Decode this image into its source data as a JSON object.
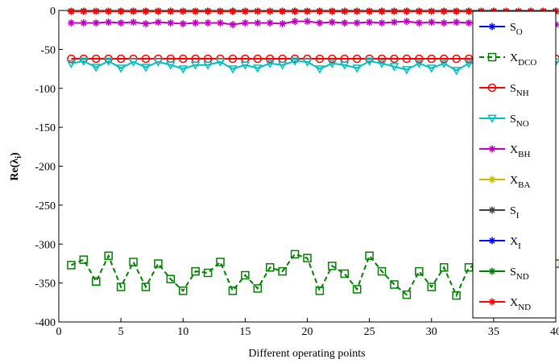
{
  "chart_data": {
    "type": "line",
    "x_label": "Different operating points",
    "y_label": {
      "main": "Re(λ",
      "sub": "i",
      "close": ")"
    },
    "xlim": [
      0,
      40
    ],
    "xticks": [
      0,
      5,
      10,
      15,
      20,
      25,
      30,
      35,
      40
    ],
    "ylim": [
      -400,
      0
    ],
    "yticks": [
      -400,
      -350,
      -300,
      -250,
      -200,
      -150,
      -100,
      -50,
      0
    ],
    "x": [
      1,
      2,
      3,
      4,
      5,
      6,
      7,
      8,
      9,
      10,
      11,
      12,
      13,
      14,
      15,
      16,
      17,
      18,
      19,
      20,
      21,
      22,
      23,
      24,
      25,
      26,
      27,
      28,
      29,
      30,
      31,
      32,
      33,
      34,
      35,
      36,
      37,
      38,
      39,
      40
    ],
    "legend": "upper right",
    "series": [
      {
        "name": "S",
        "sub": "O",
        "color": "#0000ff",
        "marker": "star",
        "dash": "solid",
        "values": [
          -1,
          -1,
          -1,
          -1,
          -1,
          -1,
          -1,
          -1,
          -1,
          -1,
          -1,
          -1,
          -1,
          -1,
          -1,
          -1,
          -1,
          -1,
          -1,
          -1,
          -1,
          -1,
          -1,
          -1,
          -1,
          -1,
          -1,
          -1,
          -1,
          -1,
          -1,
          -1,
          -1,
          -1,
          -1,
          -1,
          -1,
          -1,
          -1,
          -1
        ]
      },
      {
        "name": "X",
        "sub": "DCO",
        "color": "#008000",
        "marker": "square",
        "dash": "dashed",
        "values": [
          -327,
          -320,
          -348,
          -315,
          -355,
          -323,
          -355,
          -325,
          -345,
          -360,
          -335,
          -337,
          -323,
          -360,
          -340,
          -357,
          -330,
          -335,
          -313,
          -318,
          -360,
          -328,
          -338,
          -358,
          -315,
          -335,
          -352,
          -365,
          -335,
          -355,
          -330,
          -366,
          -330,
          -325,
          -328,
          -330,
          -325,
          -328,
          -325,
          -325
        ]
      },
      {
        "name": "S",
        "sub": "NH",
        "color": "#ff0000",
        "marker": "circle",
        "dash": "solid",
        "values": [
          -62,
          -62,
          -62,
          -62,
          -62,
          -62,
          -62,
          -62,
          -62,
          -62,
          -62,
          -62,
          -62,
          -62,
          -62,
          -62,
          -62,
          -62,
          -62,
          -62,
          -62,
          -62,
          -62,
          -62,
          -62,
          -62,
          -62,
          -62,
          -62,
          -62,
          -62,
          -62,
          -62,
          -62,
          -62,
          -62,
          -62,
          -62,
          -62,
          -62
        ]
      },
      {
        "name": "S",
        "sub": "NO",
        "color": "#00bfbf",
        "marker": "triangle",
        "dash": "solid",
        "values": [
          -68,
          -65,
          -73,
          -65,
          -74,
          -66,
          -73,
          -66,
          -70,
          -75,
          -70,
          -70,
          -66,
          -75,
          -70,
          -74,
          -68,
          -70,
          -65,
          -66,
          -75,
          -68,
          -70,
          -74,
          -65,
          -68,
          -72,
          -76,
          -68,
          -74,
          -68,
          -77,
          -68,
          -66,
          -68,
          -68,
          -66,
          -68,
          -66,
          -66
        ]
      },
      {
        "name": "X",
        "sub": "BH",
        "color": "#bf00bf",
        "marker": "star",
        "dash": "solid",
        "values": [
          -16,
          -16,
          -16,
          -15,
          -16,
          -15,
          -17,
          -15,
          -16,
          -17,
          -16,
          -16,
          -16,
          -18,
          -16,
          -16,
          -16,
          -17,
          -14,
          -14,
          -16,
          -15,
          -16,
          -16,
          -15,
          -16,
          -15,
          -14,
          -16,
          -15,
          -16,
          -15,
          -16,
          -15,
          -15,
          -16,
          -15,
          -15,
          -15,
          -18
        ]
      },
      {
        "name": "X",
        "sub": "BA",
        "color": "#bfbf00",
        "marker": "star",
        "dash": "solid",
        "values": [
          -1,
          -1,
          -1,
          -1,
          -1,
          -1,
          -1,
          -1,
          -1,
          -1,
          -1,
          -1,
          -1,
          -1,
          -1,
          -1,
          -1,
          -1,
          -1,
          -1,
          -1,
          -1,
          -1,
          -1,
          -1,
          -1,
          -1,
          -1,
          -1,
          -1,
          -1,
          -1,
          -1,
          -1,
          -1,
          -1,
          -1,
          -1,
          -1,
          -1
        ]
      },
      {
        "name": "S",
        "sub": "I",
        "color": "#404040",
        "marker": "star",
        "dash": "solid",
        "values": [
          -1,
          -1,
          -1,
          -1,
          -1,
          -1,
          -1,
          -1,
          -1,
          -1,
          -1,
          -1,
          -1,
          -1,
          -1,
          -1,
          -1,
          -1,
          -1,
          -1,
          -1,
          -1,
          -1,
          -1,
          -1,
          -1,
          -1,
          -1,
          -1,
          -1,
          -1,
          -1,
          -1,
          -1,
          -1,
          -1,
          -1,
          -1,
          -1,
          -1
        ]
      },
      {
        "name": "X",
        "sub": "I",
        "color": "#0000ff",
        "marker": "star",
        "dash": "solid",
        "values": [
          -1,
          -1,
          -1,
          -1,
          -1,
          -1,
          -1,
          -1,
          -1,
          -1,
          -1,
          -1,
          -1,
          -1,
          -1,
          -1,
          -1,
          -1,
          -1,
          -1,
          -1,
          -1,
          -1,
          -1,
          -1,
          -1,
          -1,
          -1,
          -1,
          -1,
          -1,
          -1,
          -1,
          -1,
          -1,
          -1,
          -1,
          -1,
          -1,
          -1
        ]
      },
      {
        "name": "S",
        "sub": "ND",
        "color": "#008000",
        "marker": "star",
        "dash": "solid",
        "values": [
          -1,
          -1,
          -1,
          -1,
          -1,
          -1,
          -1,
          -1,
          -1,
          -1,
          -1,
          -1,
          -1,
          -1,
          -1,
          -1,
          -1,
          -1,
          -1,
          -1,
          -1,
          -1,
          -1,
          -1,
          -1,
          -1,
          -1,
          -1,
          -1,
          -1,
          -1,
          -1,
          -1,
          -1,
          -1,
          -1,
          -1,
          -1,
          -1,
          -1
        ]
      },
      {
        "name": "X",
        "sub": "ND",
        "color": "#ff0000",
        "marker": "star",
        "dash": "solid",
        "values": [
          -1,
          -1,
          -1,
          -1,
          -1,
          -1,
          -1,
          -1,
          -1,
          -1,
          -1,
          -1,
          -1,
          -1,
          -1,
          -1,
          -1,
          -1,
          -1,
          -1,
          -1,
          -1,
          -1,
          -1,
          -1,
          -1,
          -1,
          -1,
          -1,
          -1,
          -1,
          -1,
          -1,
          -1,
          -1,
          -1,
          -1,
          -1,
          -1,
          -1
        ]
      }
    ]
  }
}
